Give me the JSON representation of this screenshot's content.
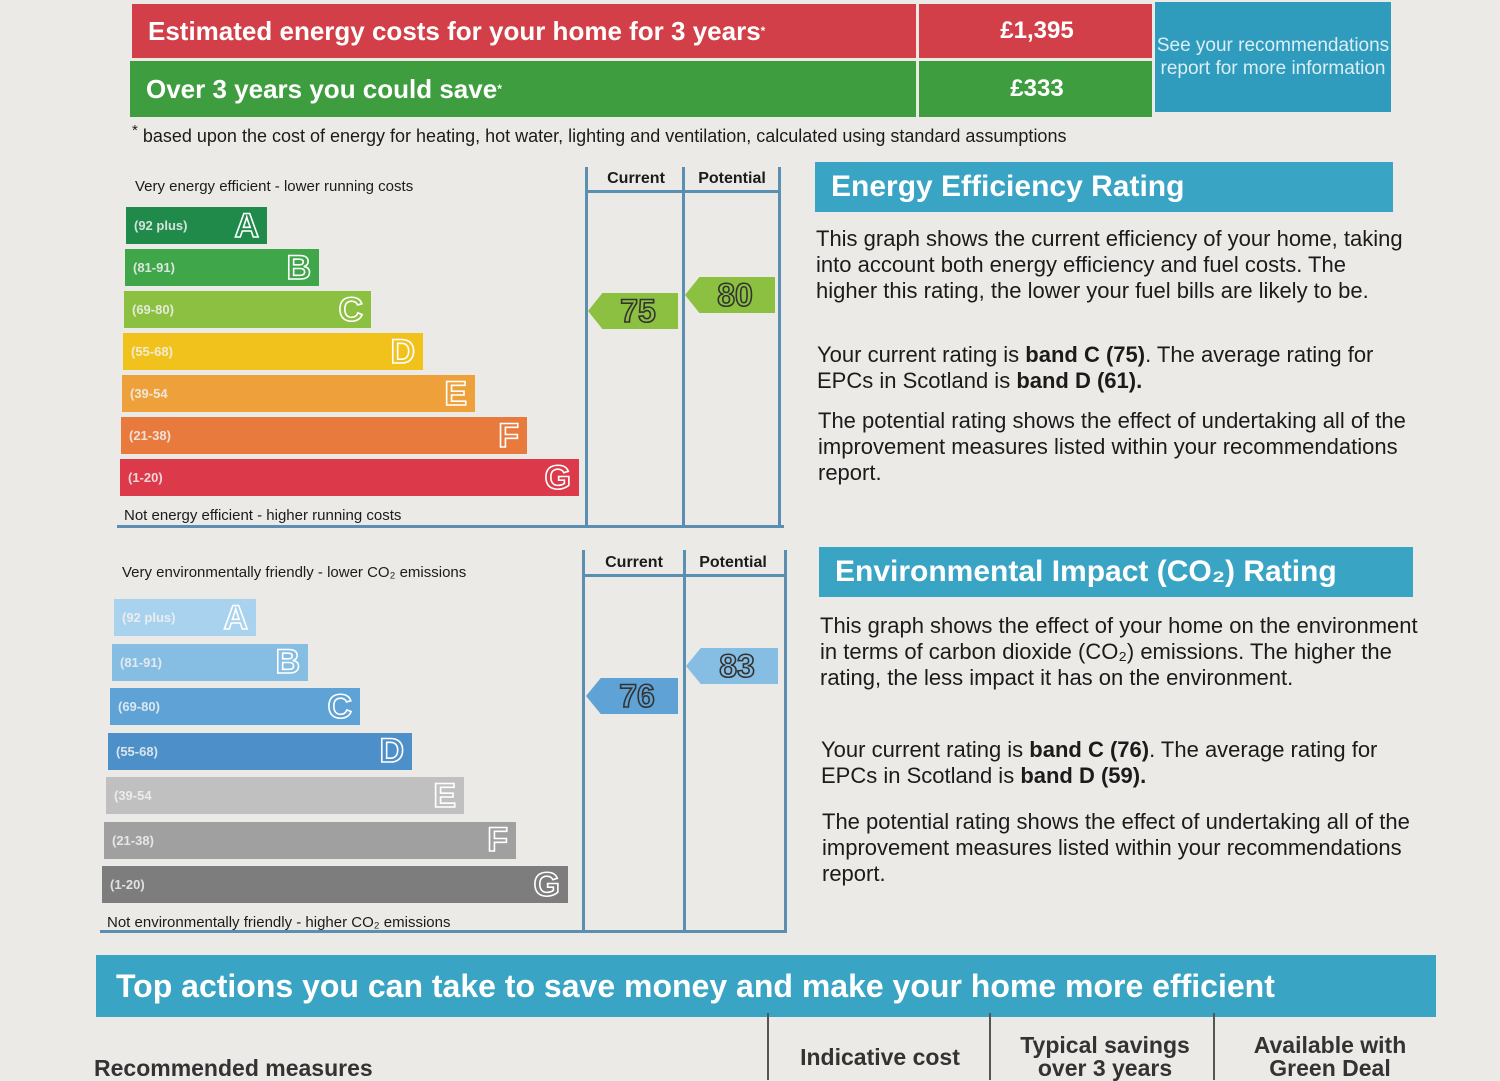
{
  "costs": {
    "estimated_label": "Estimated energy costs for your home for 3 years",
    "estimated_marker": "*",
    "estimated_value": "£1,395",
    "save_label": "Over 3 years you could save",
    "save_marker": "*",
    "save_value": "£333",
    "see_box": "See your recommendations report for more information",
    "footnote_marker": "*",
    "footnote": "based upon the cost of energy for heating, hot water, lighting and ventilation, calculated using standard assumptions"
  },
  "energy_chart": {
    "top_caption": "Very energy efficient - lower running costs",
    "bottom_caption": "Not energy efficient - higher running costs",
    "current_header": "Current",
    "potential_header": "Potential",
    "current_value": "75",
    "potential_value": "80",
    "colors": [
      "#1f8a4a",
      "#3fa64a",
      "#8cc041",
      "#f2c21c",
      "#eea13a",
      "#e77a3c",
      "#dc3a4a"
    ],
    "bands": [
      {
        "range": "(92 plus)",
        "letter": "A"
      },
      {
        "range": "(81-91)",
        "letter": "B"
      },
      {
        "range": "(69-80)",
        "letter": "C"
      },
      {
        "range": "(55-68)",
        "letter": "D"
      },
      {
        "range": "(39-54",
        "letter": "E"
      },
      {
        "range": "(21-38)",
        "letter": "F"
      },
      {
        "range": "(1-20)",
        "letter": "G"
      }
    ]
  },
  "env_chart": {
    "top_caption": "Very environmentally friendly - lower CO₂ emissions",
    "bottom_caption": "Not environmentally friendly - higher CO₂ emissions",
    "current_header": "Current",
    "potential_header": "Potential",
    "current_value": "76",
    "potential_value": "83",
    "colors": [
      "#a8d2ee",
      "#86bde3",
      "#5fa3d6",
      "#4d8fc9",
      "#c0c0c0",
      "#a0a0a0",
      "#7d7d7d"
    ],
    "bands": [
      {
        "range": "(92 plus)",
        "letter": "A"
      },
      {
        "range": "(81-91)",
        "letter": "B"
      },
      {
        "range": "(69-80)",
        "letter": "C"
      },
      {
        "range": "(55-68)",
        "letter": "D"
      },
      {
        "range": "(39-54",
        "letter": "E"
      },
      {
        "range": "(21-38)",
        "letter": "F"
      },
      {
        "range": "(1-20)",
        "letter": "G"
      }
    ]
  },
  "energy_panel": {
    "title": "Energy Efficiency Rating",
    "p1": "This graph shows the current efficiency of your home, taking into account both energy efficiency and fuel costs. The higher this rating, the lower your fuel bills are likely to be.",
    "p2_a": "Your current rating is ",
    "p2_b": "band C (75)",
    "p2_c": ". The average rating for EPCs in Scotland is ",
    "p2_d": "band D (61).",
    "p3": "The potential rating shows the effect of undertaking all of the improvement measures listed within your recommendations report."
  },
  "env_panel": {
    "title": "Environmental Impact (CO₂) Rating",
    "p1": "This graph shows the effect of your home on the environment in terms of carbon dioxide (CO₂) emissions. The higher the rating, the less impact it has on the environment.",
    "p2_a": "Your current rating is ",
    "p2_b": "band C (76)",
    "p2_c": ". The average rating for EPCs in Scotland is ",
    "p2_d": "band D (59).",
    "p3": "The potential rating shows the effect of undertaking all of the improvement measures listed within your recommendations report."
  },
  "actions": {
    "title": "Top actions you can take to save money and make your home more efficient",
    "col_measures": "Recommended measures",
    "col_cost": "Indicative cost",
    "col_savings": "Typical savings over 3 years",
    "col_greendeal": "Available with Green Deal"
  }
}
